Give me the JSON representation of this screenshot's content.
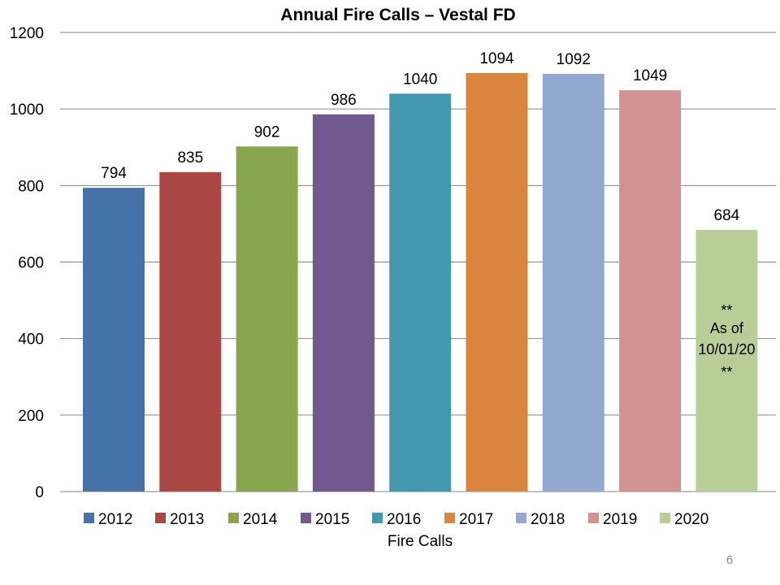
{
  "chart_data": {
    "type": "bar",
    "title": "Annual Fire Calls – Vestal FD",
    "xlabel": "Fire Calls",
    "ylabel": "",
    "ylim": [
      0,
      1200
    ],
    "yticks": [
      0,
      200,
      400,
      600,
      800,
      1000,
      1200
    ],
    "grid": true,
    "legend_position": "bottom",
    "series": [
      {
        "name": "2012",
        "value": 794,
        "color": "#4572A7"
      },
      {
        "name": "2013",
        "value": 835,
        "color": "#AA4643"
      },
      {
        "name": "2014",
        "value": 902,
        "color": "#89A54E"
      },
      {
        "name": "2015",
        "value": 986,
        "color": "#71588F"
      },
      {
        "name": "2016",
        "value": 1040,
        "color": "#4198AF"
      },
      {
        "name": "2017",
        "value": 1094,
        "color": "#DB843D"
      },
      {
        "name": "2018",
        "value": 1092,
        "color": "#93A9CF"
      },
      {
        "name": "2019",
        "value": 1049,
        "color": "#D19392"
      },
      {
        "name": "2020",
        "value": 684,
        "color": "#B9CD96"
      }
    ],
    "annotation": {
      "series": "2020",
      "lines": [
        "**",
        "As of",
        "10/01/20",
        "**"
      ]
    }
  },
  "page_number": "6"
}
